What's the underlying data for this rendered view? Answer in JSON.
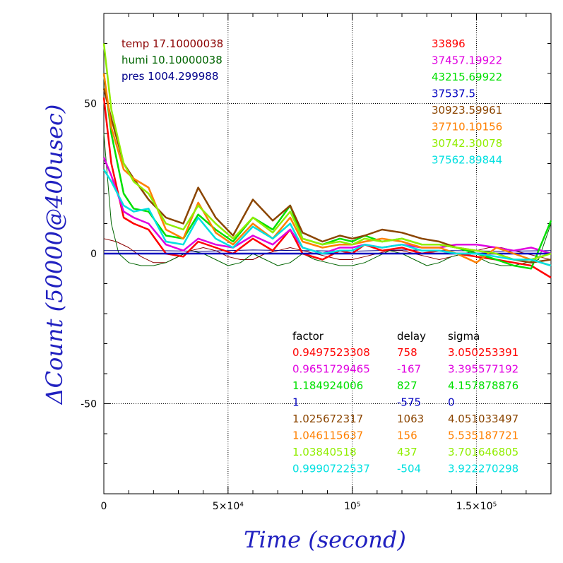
{
  "chart_data": {
    "type": "line",
    "xlabel": "Time (second)",
    "ylabel": "ΔCount (50000@400usec)",
    "xlim": [
      0,
      180000
    ],
    "ylim": [
      -80,
      80
    ],
    "grid": true,
    "x_ticks": [
      {
        "value": 0,
        "label": "0"
      },
      {
        "value": 50000,
        "label": "5×10⁴"
      },
      {
        "value": 100000,
        "label": "10⁵"
      },
      {
        "value": 150000,
        "label": "1.5×10⁵"
      }
    ],
    "y_ticks": [
      {
        "value": 50,
        "label": "50"
      },
      {
        "value": 0,
        "label": "0"
      },
      {
        "value": -50,
        "label": "-50"
      }
    ],
    "env_lines": [
      {
        "text": "temp 17.10000038",
        "color": "#8b0000"
      },
      {
        "text": "humi 10.10000038",
        "color": "#006400"
      },
      {
        "text": "pres 1004.299988",
        "color": "#00008b"
      }
    ],
    "headers": {
      "factor": "factor",
      "delay": "delay",
      "sigma": "sigma"
    },
    "series": [
      {
        "mean": "33896",
        "factor": "0.9497523308",
        "delay": "758",
        "sigma": "3.050253391",
        "color": "#ff0000",
        "x": [
          0,
          3000,
          8000,
          12000,
          18000,
          25000,
          32000,
          38000,
          45000,
          52000,
          60000,
          68000,
          75000,
          80000,
          88000,
          95000,
          100000,
          105000,
          112000,
          120000,
          128000,
          135000,
          142000,
          150000,
          158000,
          165000,
          172000,
          180000
        ],
        "y": [
          52,
          30,
          12,
          10,
          8,
          0,
          -1,
          4,
          2,
          0,
          5,
          1,
          8,
          0,
          -2,
          1,
          0,
          3,
          1,
          2,
          0,
          1,
          0,
          -1,
          -2,
          -3,
          -4,
          -8
        ]
      },
      {
        "mean": "37457.19922",
        "factor": "0.9651729465",
        "delay": "-167",
        "sigma": "3.395577192",
        "color": "#e000e0",
        "x": [
          0,
          3000,
          8000,
          12000,
          18000,
          25000,
          32000,
          38000,
          45000,
          52000,
          60000,
          68000,
          75000,
          80000,
          88000,
          95000,
          100000,
          105000,
          112000,
          120000,
          128000,
          135000,
          142000,
          150000,
          158000,
          165000,
          172000,
          180000
        ],
        "y": [
          32,
          26,
          14,
          12,
          10,
          3,
          1,
          5,
          3,
          2,
          6,
          3,
          8,
          2,
          0,
          2,
          2,
          3,
          2,
          3,
          2,
          2,
          3,
          3,
          2,
          1,
          2,
          0
        ]
      },
      {
        "mean": "43215.69922",
        "factor": "1.184924006",
        "delay": "827",
        "sigma": "4.157878876",
        "color": "#00e000",
        "x": [
          0,
          3000,
          8000,
          12000,
          18000,
          25000,
          32000,
          38000,
          45000,
          52000,
          60000,
          68000,
          75000,
          80000,
          88000,
          95000,
          100000,
          105000,
          112000,
          120000,
          128000,
          135000,
          142000,
          150000,
          158000,
          165000,
          172000,
          180000
        ],
        "y": [
          60,
          40,
          20,
          15,
          14,
          6,
          5,
          13,
          8,
          4,
          12,
          8,
          16,
          5,
          3,
          5,
          4,
          6,
          4,
          5,
          3,
          3,
          2,
          0,
          -2,
          -4,
          -5,
          11
        ]
      },
      {
        "mean": "37537.5",
        "factor": "1",
        "delay": "-575",
        "sigma": "0",
        "color": "#0000c0",
        "x": [
          0,
          10000,
          20000,
          30000,
          40000,
          50000,
          60000,
          70000,
          80000,
          90000,
          100000,
          110000,
          120000,
          130000,
          140000,
          150000,
          160000,
          170000,
          180000
        ],
        "y": [
          0,
          0,
          0,
          0,
          0,
          0,
          0,
          0,
          0,
          0,
          0,
          0,
          0,
          0,
          0,
          0,
          0,
          0,
          0
        ]
      },
      {
        "mean": "30923.59961",
        "factor": "1.025672317",
        "delay": "1063",
        "sigma": "4.051033497",
        "color": "#8b4500",
        "x": [
          0,
          3000,
          8000,
          12000,
          18000,
          25000,
          32000,
          38000,
          45000,
          52000,
          60000,
          68000,
          75000,
          80000,
          88000,
          95000,
          100000,
          105000,
          112000,
          120000,
          128000,
          135000,
          142000,
          150000,
          158000,
          165000,
          172000,
          180000
        ],
        "y": [
          55,
          45,
          30,
          25,
          18,
          12,
          10,
          22,
          12,
          6,
          18,
          11,
          16,
          7,
          4,
          6,
          5,
          6,
          8,
          7,
          5,
          4,
          2,
          1,
          0,
          -2,
          -3,
          -2
        ]
      },
      {
        "mean": "37710.10156",
        "factor": "1.046115637",
        "delay": "156",
        "sigma": "5.535187721",
        "color": "#ff8000",
        "x": [
          0,
          3000,
          8000,
          12000,
          18000,
          25000,
          32000,
          38000,
          45000,
          52000,
          60000,
          68000,
          75000,
          80000,
          88000,
          95000,
          100000,
          105000,
          112000,
          120000,
          128000,
          135000,
          142000,
          150000,
          158000,
          165000,
          172000,
          180000
        ],
        "y": [
          60,
          42,
          28,
          25,
          22,
          8,
          5,
          17,
          7,
          3,
          10,
          5,
          12,
          4,
          2,
          3,
          3,
          4,
          5,
          4,
          2,
          2,
          0,
          -3,
          2,
          0,
          -2,
          -4
        ]
      },
      {
        "mean": "30742.30078",
        "factor": "1.03840518",
        "delay": "437",
        "sigma": "3.701646805",
        "color": "#90ee00",
        "x": [
          0,
          3000,
          8000,
          12000,
          18000,
          25000,
          32000,
          38000,
          45000,
          52000,
          60000,
          68000,
          75000,
          80000,
          88000,
          95000,
          100000,
          105000,
          112000,
          120000,
          128000,
          135000,
          142000,
          150000,
          158000,
          165000,
          172000,
          180000
        ],
        "y": [
          70,
          48,
          30,
          24,
          20,
          10,
          8,
          16,
          10,
          5,
          12,
          7,
          14,
          5,
          3,
          4,
          3,
          5,
          4,
          5,
          3,
          3,
          2,
          1,
          0,
          -2,
          -2,
          0
        ]
      },
      {
        "mean": "37562.89844",
        "factor": "0.9990722537",
        "delay": "-504",
        "sigma": "3.922270298",
        "color": "#00e0e0",
        "x": [
          0,
          3000,
          8000,
          12000,
          18000,
          25000,
          32000,
          38000,
          45000,
          52000,
          60000,
          68000,
          75000,
          80000,
          88000,
          95000,
          100000,
          105000,
          112000,
          120000,
          128000,
          135000,
          142000,
          150000,
          158000,
          165000,
          172000,
          180000
        ],
        "y": [
          28,
          24,
          16,
          14,
          15,
          4,
          3,
          12,
          5,
          2,
          9,
          5,
          10,
          2,
          0,
          1,
          1,
          3,
          2,
          3,
          1,
          1,
          0,
          0,
          -1,
          -2,
          -2,
          -4
        ]
      }
    ],
    "env_curves": [
      {
        "color": "#8b0000",
        "x": [
          0,
          5000,
          10000,
          15000,
          20000,
          25000,
          30000,
          35000,
          40000,
          45000,
          50000,
          55000,
          60000,
          65000,
          70000,
          75000,
          80000,
          85000,
          90000,
          95000,
          100000,
          105000,
          110000,
          115000,
          120000,
          125000,
          130000,
          135000,
          140000,
          145000,
          150000,
          155000,
          160000,
          165000,
          170000,
          175000,
          180000
        ],
        "y": [
          5,
          4,
          2,
          -1,
          -3,
          -3,
          -1,
          1,
          2,
          1,
          -1,
          -2,
          -2,
          0,
          1,
          2,
          1,
          0,
          -1,
          -2,
          -2,
          -1,
          0,
          1,
          1,
          0,
          -1,
          -2,
          -1,
          0,
          1,
          2,
          2,
          1,
          0,
          -1,
          -2
        ]
      },
      {
        "color": "#006400",
        "x": [
          0,
          3000,
          6000,
          10000,
          15000,
          20000,
          25000,
          30000,
          35000,
          40000,
          45000,
          50000,
          55000,
          60000,
          65000,
          70000,
          75000,
          80000,
          85000,
          90000,
          95000,
          100000,
          105000,
          110000,
          115000,
          120000,
          125000,
          130000,
          135000,
          140000,
          145000,
          150000,
          155000,
          160000,
          165000,
          170000,
          175000,
          180000
        ],
        "y": [
          40,
          10,
          0,
          -3,
          -4,
          -4,
          -3,
          -1,
          1,
          0,
          -2,
          -4,
          -3,
          0,
          -2,
          -4,
          -3,
          0,
          -2,
          -3,
          -4,
          -4,
          -3,
          -1,
          1,
          0,
          -2,
          -4,
          -3,
          -1,
          0,
          -1,
          -3,
          -4,
          -4,
          -3,
          -2,
          10
        ]
      },
      {
        "color": "#00008b",
        "x": [
          0,
          20000,
          40000,
          60000,
          80000,
          100000,
          120000,
          140000,
          160000,
          180000
        ],
        "y": [
          1,
          1,
          0.8,
          1.2,
          1,
          0.8,
          1.2,
          1,
          0.8,
          1
        ]
      }
    ]
  }
}
